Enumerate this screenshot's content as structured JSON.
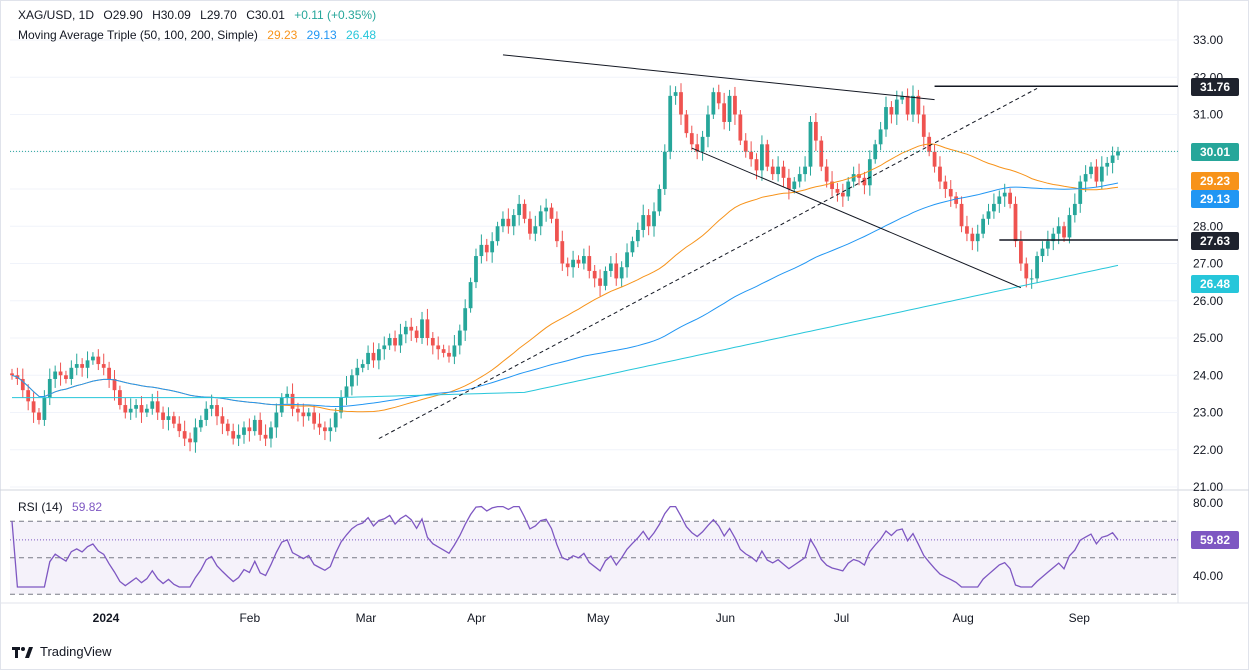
{
  "header": {
    "symbol": "XAG/USD, 1D",
    "open": "O29.90",
    "high": "H30.09",
    "low": "L29.70",
    "close": "C30.01",
    "change": "+0.11 (+0.35%)",
    "ma_label": "Moving Average Triple (50, 100, 200, Simple)",
    "ma50": "29.23",
    "ma100": "29.13",
    "ma200": "26.48"
  },
  "rsi_header": {
    "label": "RSI (14)",
    "value": "59.82"
  },
  "footer": {
    "brand": "TradingView"
  },
  "colors": {
    "up": "#26a69a",
    "down": "#ef5350",
    "ma50": "#f7931a",
    "ma100": "#2196f3",
    "ma200": "#26c6da",
    "rsi": "#7e57c2"
  },
  "price_tags": [
    {
      "value": "31.76",
      "color": "#1e222d"
    },
    {
      "value": "30.01",
      "color": "#26a69a"
    },
    {
      "value": "29.23",
      "color": "#f7931a"
    },
    {
      "value": "29.13",
      "color": "#2196f3"
    },
    {
      "value": "27.63",
      "color": "#1e222d"
    },
    {
      "value": "26.48",
      "color": "#26c6da"
    }
  ],
  "rsi_tag": {
    "value": "59.82",
    "color": "#7e57c2"
  },
  "chart_data": [
    {
      "type": "candlestick",
      "title": "XAG/USD, 1D",
      "y_ticks": [
        "33.00",
        "32.00",
        "31.00",
        "30.00",
        "29.00",
        "28.00",
        "27.00",
        "26.00",
        "25.00",
        "24.00",
        "23.00",
        "22.00",
        "21.00"
      ],
      "ylim": [
        21,
        33
      ],
      "x_ticks": [
        "2024",
        "Feb",
        "Mar",
        "Apr",
        "May",
        "Jun",
        "Jul",
        "Aug",
        "Sep"
      ],
      "last_price": 30.01,
      "horizontal_levels": [
        31.76,
        27.63
      ],
      "closes": [
        24.0,
        23.9,
        23.6,
        23.3,
        23.0,
        22.8,
        23.4,
        23.9,
        24.1,
        24.0,
        23.9,
        24.2,
        24.3,
        24.2,
        24.4,
        24.5,
        24.3,
        24.2,
        23.9,
        23.6,
        23.2,
        23.0,
        23.1,
        23.2,
        23.0,
        23.1,
        23.3,
        23.0,
        22.8,
        22.9,
        22.7,
        22.5,
        22.3,
        22.2,
        22.6,
        22.8,
        23.1,
        23.2,
        22.9,
        22.7,
        22.5,
        22.3,
        22.4,
        22.6,
        22.5,
        22.8,
        22.4,
        22.3,
        22.6,
        23.0,
        23.4,
        23.5,
        23.1,
        23.0,
        22.9,
        23.0,
        22.7,
        22.6,
        22.5,
        22.6,
        23.0,
        23.4,
        23.7,
        24.0,
        24.2,
        24.3,
        24.6,
        24.4,
        24.7,
        24.8,
        25.0,
        24.8,
        25.1,
        25.3,
        25.2,
        25.0,
        25.5,
        25.0,
        24.8,
        24.7,
        24.6,
        24.5,
        24.8,
        25.2,
        25.8,
        26.5,
        27.2,
        27.5,
        27.3,
        27.6,
        28.0,
        28.2,
        28.0,
        28.3,
        28.6,
        28.2,
        27.8,
        28.0,
        28.4,
        28.5,
        28.2,
        27.6,
        27.0,
        26.9,
        27.1,
        27.0,
        27.2,
        26.8,
        26.6,
        26.4,
        26.8,
        27.0,
        26.6,
        26.9,
        27.3,
        27.6,
        27.9,
        28.3,
        28.0,
        28.4,
        29.0,
        30.0,
        31.5,
        31.6,
        31.0,
        30.5,
        30.2,
        30.0,
        30.4,
        31.0,
        31.6,
        31.3,
        30.8,
        31.5,
        31.0,
        30.3,
        30.0,
        29.8,
        29.5,
        30.2,
        29.6,
        29.4,
        29.6,
        29.3,
        29.0,
        29.2,
        29.4,
        29.6,
        30.8,
        30.3,
        29.6,
        29.2,
        29.0,
        28.9,
        28.8,
        29.2,
        29.4,
        29.3,
        29.1,
        29.8,
        30.2,
        30.6,
        31.2,
        31.0,
        31.4,
        31.5,
        31.0,
        31.5,
        31.0,
        30.4,
        30.0,
        29.6,
        29.2,
        29.0,
        28.8,
        28.6,
        28.0,
        27.8,
        27.6,
        27.8,
        28.2,
        28.4,
        28.6,
        28.8,
        28.9,
        28.6,
        27.6,
        27.0,
        26.6,
        26.6,
        27.2,
        27.4,
        27.6,
        27.8,
        28.0,
        27.7,
        28.3,
        28.6,
        29.2,
        29.4,
        29.6,
        29.2,
        29.6,
        29.7,
        29.9,
        30.01
      ]
    },
    {
      "type": "line",
      "title": "RSI (14)",
      "y_ticks": [
        "80.00",
        "40.00"
      ],
      "ylim": [
        30,
        82
      ],
      "levels": [
        70,
        50,
        30
      ],
      "last_value": 59.82
    }
  ]
}
